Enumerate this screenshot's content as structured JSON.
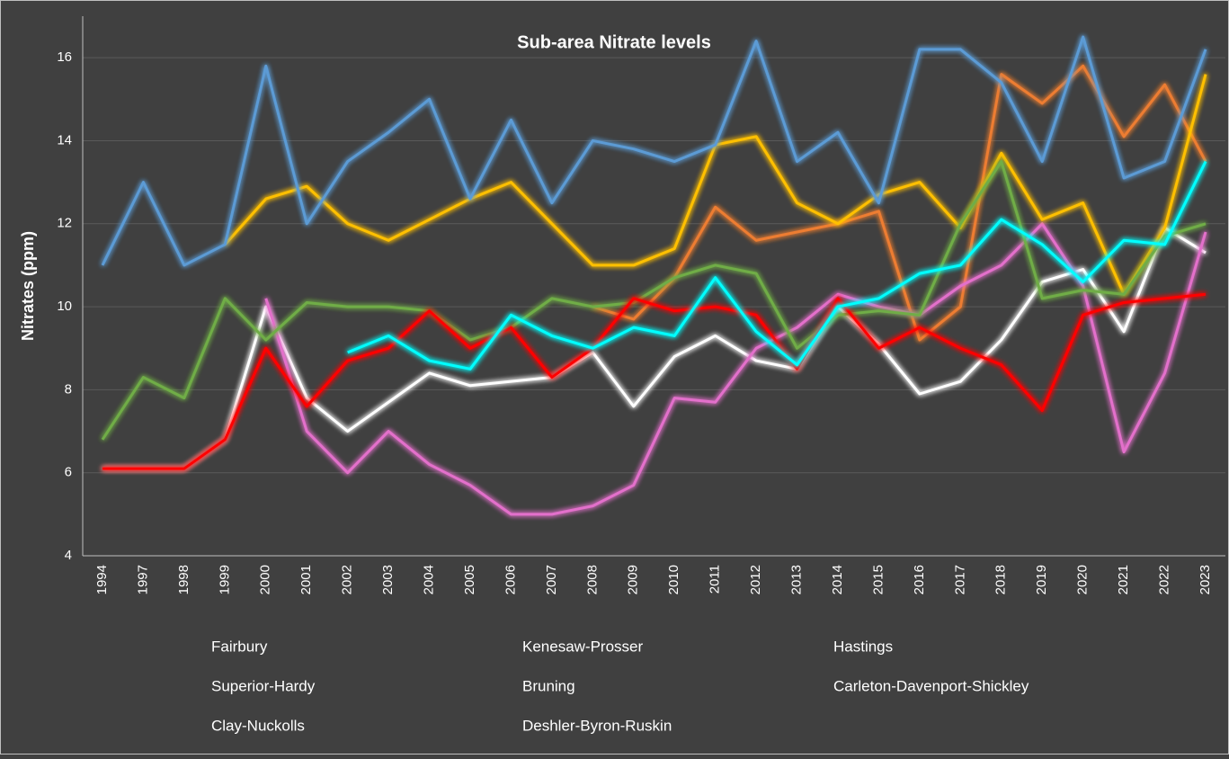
{
  "chart_data": {
    "type": "line",
    "title": "Sub-area Nitrate levels",
    "y_label": "Nitrates (ppm)",
    "categories": [
      "1994",
      "1997",
      "1998",
      "1999",
      "2000",
      "2001",
      "2002",
      "2003",
      "2004",
      "2005",
      "2006",
      "2007",
      "2008",
      "2009",
      "2010",
      "2011",
      "2012",
      "2013",
      "2014",
      "2015",
      "2016",
      "2017",
      "2018",
      "2019",
      "2020",
      "2021",
      "2022",
      "2023"
    ],
    "ylim": [
      4,
      17
    ],
    "yticks": [
      4,
      6,
      8,
      10,
      12,
      14,
      16
    ],
    "grid": true,
    "legend": "bottom",
    "series": [
      {
        "name": "Fairbury",
        "color": "#ffffff",
        "values": [
          6.1,
          6.1,
          6.1,
          6.8,
          10.0,
          7.8,
          7.0,
          7.7,
          8.4,
          8.1,
          8.2,
          8.3,
          8.9,
          7.6,
          8.8,
          9.3,
          8.7,
          8.5,
          10.0,
          9.1,
          7.9,
          8.2,
          9.2,
          10.6,
          10.9,
          9.4,
          11.9,
          11.3
        ]
      },
      {
        "name": "Kenesaw-Prosser",
        "color": "#ed7d31",
        "values": [
          null,
          null,
          null,
          null,
          null,
          null,
          null,
          null,
          null,
          null,
          null,
          null,
          10.0,
          9.7,
          10.7,
          12.4,
          11.6,
          11.8,
          12.0,
          12.3,
          9.2,
          10.0,
          15.6,
          14.9,
          15.8,
          14.1,
          15.35,
          13.5
        ]
      },
      {
        "name": "Hastings",
        "color": "#e36fcb",
        "values": [
          null,
          null,
          null,
          null,
          10.2,
          7.0,
          6.0,
          7.0,
          6.2,
          5.7,
          5.0,
          5.0,
          5.2,
          5.7,
          7.8,
          7.7,
          9.0,
          9.5,
          10.3,
          10.0,
          9.8,
          10.5,
          11.0,
          12.0,
          10.5,
          6.5,
          8.4,
          11.8
        ]
      },
      {
        "name": "Superior-Hardy",
        "color": "#ffc000",
        "values": [
          null,
          null,
          null,
          11.5,
          12.6,
          12.9,
          12.0,
          11.6,
          12.1,
          12.6,
          13.0,
          12.0,
          11.0,
          11.0,
          11.4,
          13.9,
          14.1,
          12.5,
          12.0,
          12.7,
          13.0,
          11.9,
          13.7,
          12.1,
          12.5,
          10.3,
          11.9,
          15.6
        ]
      },
      {
        "name": "Bruning",
        "color": "#5b9bd5",
        "values": [
          11.0,
          13.0,
          11.0,
          11.5,
          15.8,
          12.0,
          13.5,
          14.2,
          15.0,
          12.6,
          14.5,
          12.5,
          14.0,
          13.8,
          13.5,
          13.9,
          16.4,
          13.5,
          14.2,
          12.5,
          16.2,
          16.2,
          15.4,
          13.5,
          16.5,
          13.1,
          13.5,
          16.2
        ]
      },
      {
        "name": "Carleton-Davenport-Shickley",
        "color": "#70ad47",
        "values": [
          6.8,
          8.3,
          7.8,
          10.2,
          9.2,
          10.1,
          10.0,
          10.0,
          9.9,
          9.2,
          9.5,
          10.2,
          10.0,
          10.1,
          10.7,
          11.0,
          10.8,
          9.0,
          9.8,
          9.9,
          9.8,
          12.0,
          13.5,
          10.2,
          10.4,
          10.3,
          11.7,
          12.0
        ]
      },
      {
        "name": "Clay-Nuckolls",
        "color": "#ff0000",
        "values": [
          6.1,
          6.1,
          6.1,
          6.8,
          9.0,
          7.6,
          8.7,
          9.0,
          9.9,
          9.0,
          9.5,
          8.3,
          9.0,
          10.2,
          9.9,
          10.0,
          9.8,
          8.5,
          10.2,
          9.0,
          9.5,
          9.0,
          8.6,
          7.5,
          9.8,
          10.1,
          10.2,
          10.3
        ]
      },
      {
        "name": "Deshler-Byron-Ruskin",
        "color": "#00ffff",
        "values": [
          null,
          null,
          null,
          null,
          null,
          null,
          8.9,
          9.3,
          8.7,
          8.5,
          9.8,
          9.3,
          9.0,
          9.5,
          9.3,
          10.7,
          9.4,
          8.6,
          10.0,
          10.2,
          10.8,
          11.0,
          12.1,
          11.5,
          10.6,
          11.6,
          11.5,
          13.5
        ]
      }
    ]
  }
}
